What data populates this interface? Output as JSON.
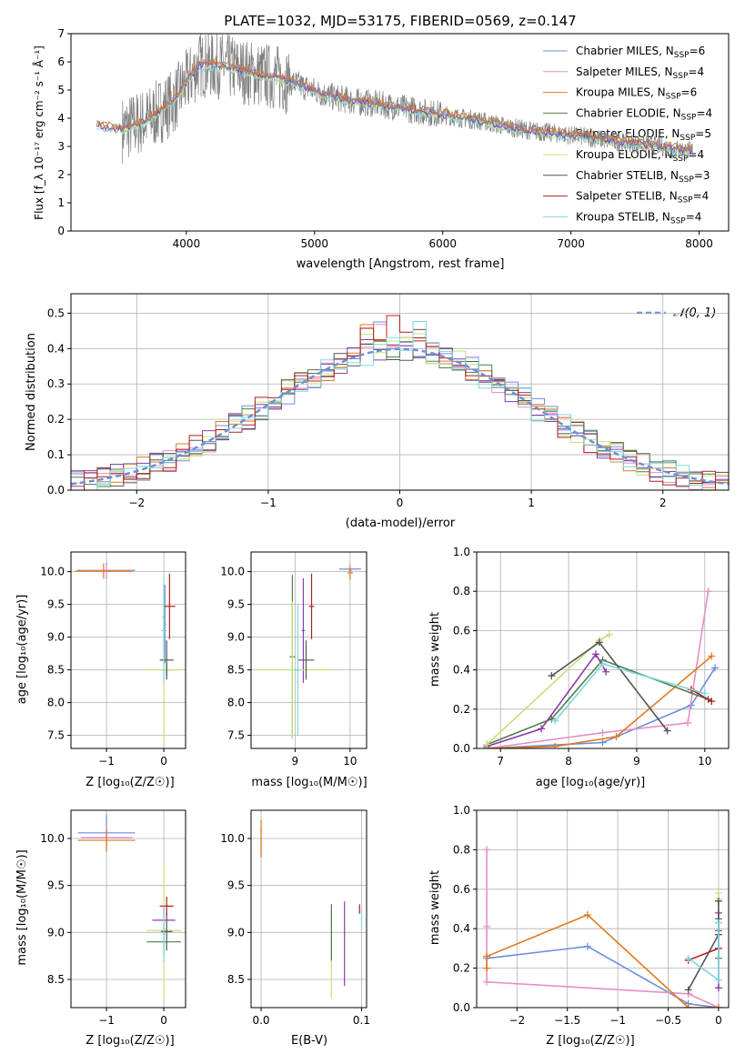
{
  "colors": [
    "#6a8fdc",
    "#e58fc6",
    "#e07a1f",
    "#4f7d4f",
    "#8e3ba8",
    "#c5e07a",
    "#555555",
    "#b01f1f",
    "#7fd6dc"
  ],
  "chart_data": [
    {
      "id": "spectrum",
      "type": "line",
      "title": "PLATE=1032, MJD=53175, FIBERID=0569, z=0.147",
      "xlabel": "wavelength [Angstrom, rest frame]",
      "ylabel": "Flux [f_λ 10⁻¹⁷ erg cm⁻² s⁻¹ Å⁻¹]",
      "xlim": [
        3100,
        8230
      ],
      "ylim": [
        0,
        7
      ],
      "xticks": [
        4000,
        5000,
        6000,
        7000,
        8000
      ],
      "yticks": [
        0,
        1,
        2,
        3,
        4,
        5,
        6,
        7
      ],
      "legend_position": "top-right",
      "data_trend": {
        "x": [
          3300,
          3500,
          3700,
          3900,
          4100,
          4300,
          4500,
          4700,
          4900,
          5100,
          5300,
          5500,
          5700,
          5900,
          6100,
          6300,
          6500,
          6700,
          6900,
          7100,
          7300,
          7500,
          7700,
          7900
        ],
        "y": [
          3.75,
          3.6,
          3.95,
          4.6,
          5.9,
          5.85,
          5.6,
          5.45,
          5.15,
          4.8,
          4.6,
          4.5,
          4.35,
          4.2,
          4.05,
          3.9,
          3.7,
          3.55,
          3.45,
          3.35,
          3.2,
          3.1,
          3.0,
          2.85
        ]
      },
      "series": [
        {
          "name": "Chabrier MILES, N_SSP=6"
        },
        {
          "name": "Salpeter MILES, N_SSP=4"
        },
        {
          "name": "Kroupa MILES, N_SSP=6"
        },
        {
          "name": "Chabrier ELODIE, N_SSP=4"
        },
        {
          "name": "Salpeter ELODIE, N_SSP=5"
        },
        {
          "name": "Kroupa ELODIE, N_SSP=4"
        },
        {
          "name": "Chabrier STELIB, N_SSP=3"
        },
        {
          "name": "Salpeter STELIB, N_SSP=4"
        },
        {
          "name": "Kroupa STELIB, N_SSP=4"
        }
      ]
    },
    {
      "id": "residuals",
      "type": "line",
      "title": "",
      "xlabel": "(data-model)/error",
      "ylabel": "Normed distribution",
      "xlim": [
        -2.5,
        2.5
      ],
      "ylim": [
        0,
        0.555
      ],
      "xticks": [
        -2,
        -1,
        0,
        1,
        2
      ],
      "yticks": [
        0.0,
        0.1,
        0.2,
        0.3,
        0.4,
        0.5
      ],
      "grid": true,
      "legend_position": "top-right",
      "gaussian_label": "𝒩(0, 1)"
    },
    {
      "id": "age-vs-Z",
      "type": "scatter",
      "xlabel": "Z [log₁₀(Z/Z☉)]",
      "ylabel": "age  [log₁₀(age/yr)]",
      "xlim": [
        -1.62,
        0.38
      ],
      "ylim": [
        7.3,
        10.3
      ],
      "xticks": [
        -1,
        0
      ],
      "yticks": [
        7.5,
        8.0,
        8.5,
        9.0,
        9.5,
        10.0
      ],
      "grid": true,
      "points": [
        {
          "s": 0,
          "x": -1.0,
          "xe": 0.5,
          "y": 10.02,
          "ye": 0.12
        },
        {
          "s": 1,
          "x": -1.0,
          "xe": 0.45,
          "y": 10.02,
          "ye": 0.1
        },
        {
          "s": 2,
          "x": -1.05,
          "xe": 0.5,
          "y": 10.01,
          "ye": 0.12
        },
        {
          "s": 0,
          "x": 0.02,
          "xe": 0.02,
          "y": 9.2,
          "ye": 0.6
        },
        {
          "s": 3,
          "x": 0.0,
          "xe": 0.02,
          "y": 9.3,
          "ye": 0.5
        },
        {
          "s": 4,
          "x": 0.05,
          "xe": 0.1,
          "y": 8.5,
          "ye": 0.1
        },
        {
          "s": 5,
          "x": 0.0,
          "xe": 0.3,
          "y": 8.5,
          "ye": 1.1
        },
        {
          "s": 6,
          "x": 0.05,
          "xe": 0.12,
          "y": 8.65,
          "ye": 0.3
        },
        {
          "s": 7,
          "x": 0.1,
          "xe": 0.1,
          "y": 9.47,
          "ye": 0.5
        },
        {
          "s": 8,
          "x": 0.0,
          "xe": 0.05,
          "y": 9.1,
          "ye": 0.8
        }
      ]
    },
    {
      "id": "age-vs-mass",
      "type": "scatter",
      "xlabel": "mass [log₁₀(M/M☉)]",
      "ylabel": "",
      "xlim": [
        8.2,
        10.3
      ],
      "ylim": [
        7.3,
        10.3
      ],
      "xticks": [
        9,
        10
      ],
      "yticks": [
        7.5,
        8.0,
        8.5,
        9.0,
        9.5,
        10.0
      ],
      "grid": true,
      "points": [
        {
          "s": 0,
          "x": 10.0,
          "xe": 0.2,
          "y": 10.04,
          "ye": 0.03
        },
        {
          "s": 1,
          "x": 10.0,
          "xe": 0.03,
          "y": 10.02,
          "ye": 0.1
        },
        {
          "s": 2,
          "x": 10.0,
          "xe": 0.05,
          "y": 9.98,
          "ye": 0.1
        },
        {
          "s": 3,
          "x": 8.95,
          "xe": 0.05,
          "y": 8.7,
          "ye": 1.25
        },
        {
          "s": 4,
          "x": 9.15,
          "xe": 0.03,
          "y": 9.1,
          "ye": 0.8
        },
        {
          "s": 5,
          "x": 8.95,
          "xe": 0.7,
          "y": 8.5,
          "ye": 1.05
        },
        {
          "s": 6,
          "x": 9.2,
          "xe": 0.15,
          "y": 8.65,
          "ye": 0.3
        },
        {
          "s": 7,
          "x": 9.3,
          "xe": 0.05,
          "y": 9.47,
          "ye": 0.5
        },
        {
          "s": 8,
          "x": 9.05,
          "xe": 0.05,
          "y": 8.5,
          "ye": 1.0
        }
      ]
    },
    {
      "id": "weight-vs-age",
      "type": "line",
      "xlabel": "age  [log₁₀(age/yr)]",
      "ylabel": "mass weight",
      "xlim": [
        6.65,
        10.35
      ],
      "ylim": [
        0,
        1.0
      ],
      "xticks": [
        7,
        8,
        9,
        10
      ],
      "yticks": [
        0.0,
        0.2,
        0.4,
        0.6,
        0.8,
        1.0
      ],
      "grid": true,
      "series": [
        {
          "s": 0,
          "x": [
            6.8,
            8.5,
            9.8,
            10.15
          ],
          "y": [
            0.0,
            0.03,
            0.22,
            0.41
          ]
        },
        {
          "s": 1,
          "x": [
            6.8,
            8.5,
            9.75,
            10.05
          ],
          "y": [
            0.0,
            0.08,
            0.13,
            0.8
          ]
        },
        {
          "s": 2,
          "x": [
            6.8,
            7.8,
            8.7,
            10.1
          ],
          "y": [
            0.0,
            0.01,
            0.06,
            0.47
          ]
        },
        {
          "s": 3,
          "x": [
            6.8,
            7.75,
            8.5,
            10.05
          ],
          "y": [
            0.02,
            0.15,
            0.45,
            0.25
          ]
        },
        {
          "s": 4,
          "x": [
            6.8,
            7.6,
            8.4,
            8.55
          ],
          "y": [
            0.01,
            0.1,
            0.48,
            0.39
          ]
        },
        {
          "s": 5,
          "x": [
            6.8,
            8.45,
            8.6
          ],
          "y": [
            0.02,
            0.55,
            0.58
          ]
        },
        {
          "s": 6,
          "x": [
            7.75,
            8.45,
            9.45
          ],
          "y": [
            0.37,
            0.54,
            0.09
          ]
        },
        {
          "s": 7,
          "x": [
            9.8,
            10.1
          ],
          "y": [
            0.3,
            0.24
          ]
        },
        {
          "s": 8,
          "x": [
            7.8,
            8.5,
            10.0
          ],
          "y": [
            0.14,
            0.43,
            0.28
          ]
        }
      ]
    },
    {
      "id": "mass-vs-Z",
      "type": "scatter",
      "xlabel": "Z [log₁₀(Z/Z☉)]",
      "ylabel": "mass [log₁₀(M/M☉)]",
      "xlim": [
        -1.62,
        0.38
      ],
      "ylim": [
        8.2,
        10.3
      ],
      "xticks": [
        -1,
        0
      ],
      "yticks": [
        8.5,
        9.0,
        9.5,
        10.0
      ],
      "grid": true,
      "points": [
        {
          "s": 0,
          "x": -1.0,
          "xe": 0.5,
          "y": 10.06,
          "ye": 0.2
        },
        {
          "s": 1,
          "x": -1.0,
          "xe": 0.45,
          "y": 10.01,
          "ye": 0.1
        },
        {
          "s": 2,
          "x": -1.0,
          "xe": 0.5,
          "y": 9.98,
          "ye": 0.12
        },
        {
          "s": 3,
          "x": 0.0,
          "xe": 0.3,
          "y": 8.9,
          "ye": 0.15
        },
        {
          "s": 4,
          "x": 0.0,
          "xe": 0.2,
          "y": 9.13,
          "ye": 0.15
        },
        {
          "s": 5,
          "x": 0.0,
          "xe": 0.3,
          "y": 9.02,
          "ye": 0.7
        },
        {
          "s": 6,
          "x": 0.05,
          "xe": 0.1,
          "y": 9.01,
          "ye": 0.2
        },
        {
          "s": 7,
          "x": 0.05,
          "xe": 0.12,
          "y": 9.28,
          "ye": 0.1
        },
        {
          "s": 8,
          "x": 0.0,
          "xe": 0.02,
          "y": 8.98,
          "ye": 0.3
        }
      ]
    },
    {
      "id": "mass-vs-EBV",
      "type": "scatter",
      "xlabel": "E(B-V)",
      "ylabel": "",
      "xlim": [
        -0.01,
        0.105
      ],
      "ylim": [
        8.2,
        10.3
      ],
      "xticks": [
        0.0,
        0.1
      ],
      "xtick_labels": [
        "0.0",
        "0.1"
      ],
      "yticks": [
        8.5,
        9.0,
        9.5,
        10.0
      ],
      "grid": true,
      "points": [
        {
          "s": 0,
          "x": 0.0,
          "xe": 0,
          "y": 9.95,
          "ye": 0.15
        },
        {
          "s": 2,
          "x": 0.0,
          "xe": 0,
          "y": 10.0,
          "ye": 0.2
        },
        {
          "s": 5,
          "x": 0.07,
          "xe": 0,
          "y": 8.8,
          "ye": 0.5
        },
        {
          "s": 4,
          "x": 0.083,
          "xe": 0,
          "y": 8.88,
          "ye": 0.45
        },
        {
          "s": 3,
          "x": 0.07,
          "xe": 0,
          "y": 9.0,
          "ye": 0.3
        },
        {
          "s": 7,
          "x": 0.098,
          "xe": 0,
          "y": 9.25,
          "ye": 0.05
        },
        {
          "s": 8,
          "x": 0.1,
          "xe": 0,
          "y": 9.15,
          "ye": 0.1
        }
      ]
    },
    {
      "id": "weight-vs-Z",
      "type": "line",
      "xlabel": "Z [log₁₀(Z/Z☉)]",
      "ylabel": "mass weight",
      "xlim": [
        -2.4,
        0.1
      ],
      "ylim": [
        0,
        1.0
      ],
      "xticks": [
        -2.0,
        -1.5,
        -1.0,
        -0.5,
        0.0
      ],
      "yticks": [
        0.0,
        0.2,
        0.4,
        0.6,
        0.8,
        1.0
      ],
      "grid": true,
      "series": [
        {
          "s": 0,
          "x": [
            -2.3,
            -1.3,
            -0.3,
            0.0
          ],
          "y": [
            0.25,
            0.31,
            0.02,
            0.0
          ]
        },
        {
          "s": 1,
          "x": [
            -2.3,
            -2.3,
            -2.3,
            -0.3,
            0.0
          ],
          "y": [
            0.8,
            0.41,
            0.13,
            0.07,
            0.0
          ]
        },
        {
          "s": 2,
          "x": [
            -2.3,
            -2.3,
            -1.3,
            -0.3,
            0.0
          ],
          "y": [
            0.2,
            0.26,
            0.47,
            0.0,
            0.0
          ]
        },
        {
          "s": 3,
          "x": [
            0.0,
            0.0
          ],
          "y": [
            0.25,
            0.45
          ]
        },
        {
          "s": 4,
          "x": [
            0.0,
            0.0,
            0.0
          ],
          "y": [
            0.48,
            0.39,
            0.1
          ]
        },
        {
          "s": 5,
          "x": [
            0.0,
            0.0
          ],
          "y": [
            0.58,
            0.55
          ]
        },
        {
          "s": 6,
          "x": [
            -0.3,
            0.0,
            0.0
          ],
          "y": [
            0.09,
            0.37,
            0.54
          ]
        },
        {
          "s": 7,
          "x": [
            -0.3,
            0.0
          ],
          "y": [
            0.24,
            0.3
          ]
        },
        {
          "s": 8,
          "x": [
            -0.3,
            0.0,
            0.0
          ],
          "y": [
            0.25,
            0.14,
            0.43
          ]
        }
      ]
    }
  ]
}
